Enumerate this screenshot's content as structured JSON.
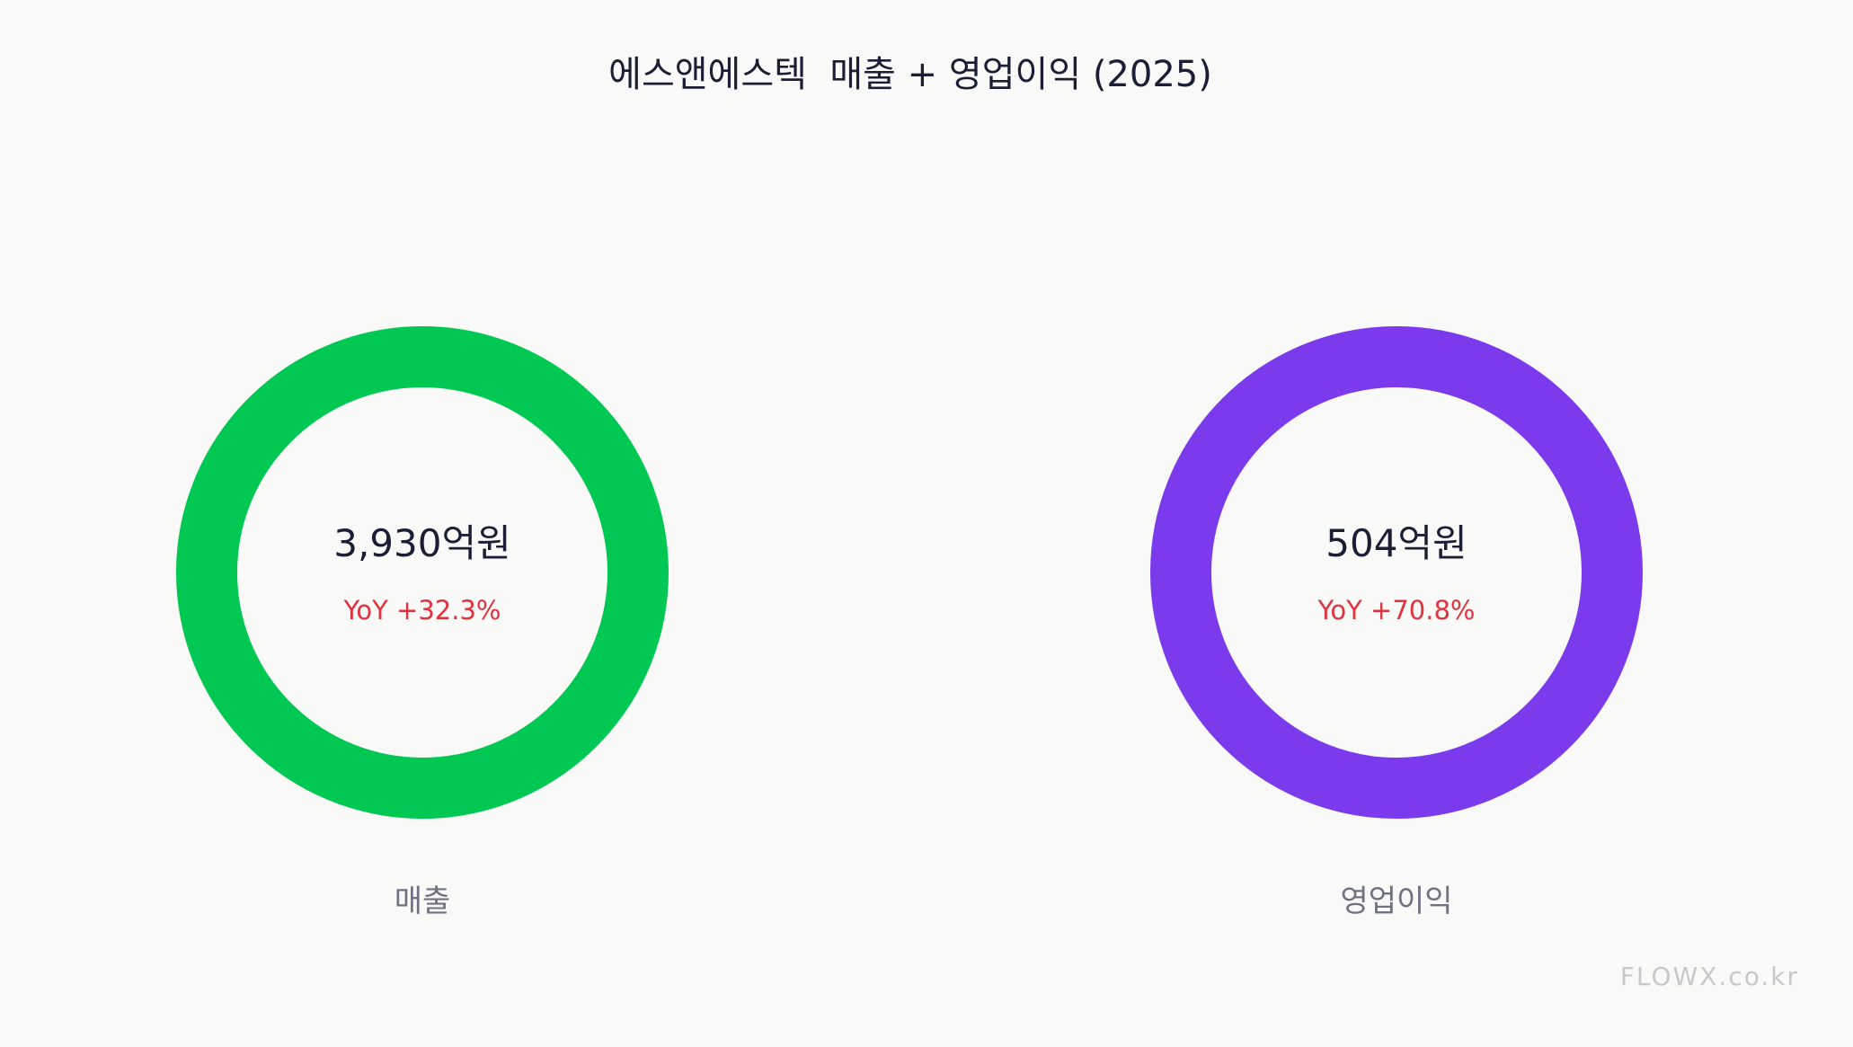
{
  "title": "에스앤에스텍  매출 + 영업이익 (2025)",
  "watermark": "FLOWX.co.kr",
  "chart_data": [
    {
      "type": "pie",
      "label": "매출",
      "value": 3930,
      "unit": "억원",
      "value_text": "3,930억원",
      "yoy_percent": 32.3,
      "yoy_text": "YoY +32.3%",
      "color": "#00c853"
    },
    {
      "type": "pie",
      "label": "영업이익",
      "value": 504,
      "unit": "억원",
      "value_text": "504억원",
      "yoy_percent": 70.8,
      "yoy_text": "YoY +70.8%",
      "color": "#7c3aed"
    }
  ],
  "colors": {
    "background": "#f9f9f7",
    "yoy_positive": "#e0323f",
    "text_primary": "#1a1f36",
    "text_secondary": "#6e7282",
    "watermark": "#c6c8cc"
  }
}
